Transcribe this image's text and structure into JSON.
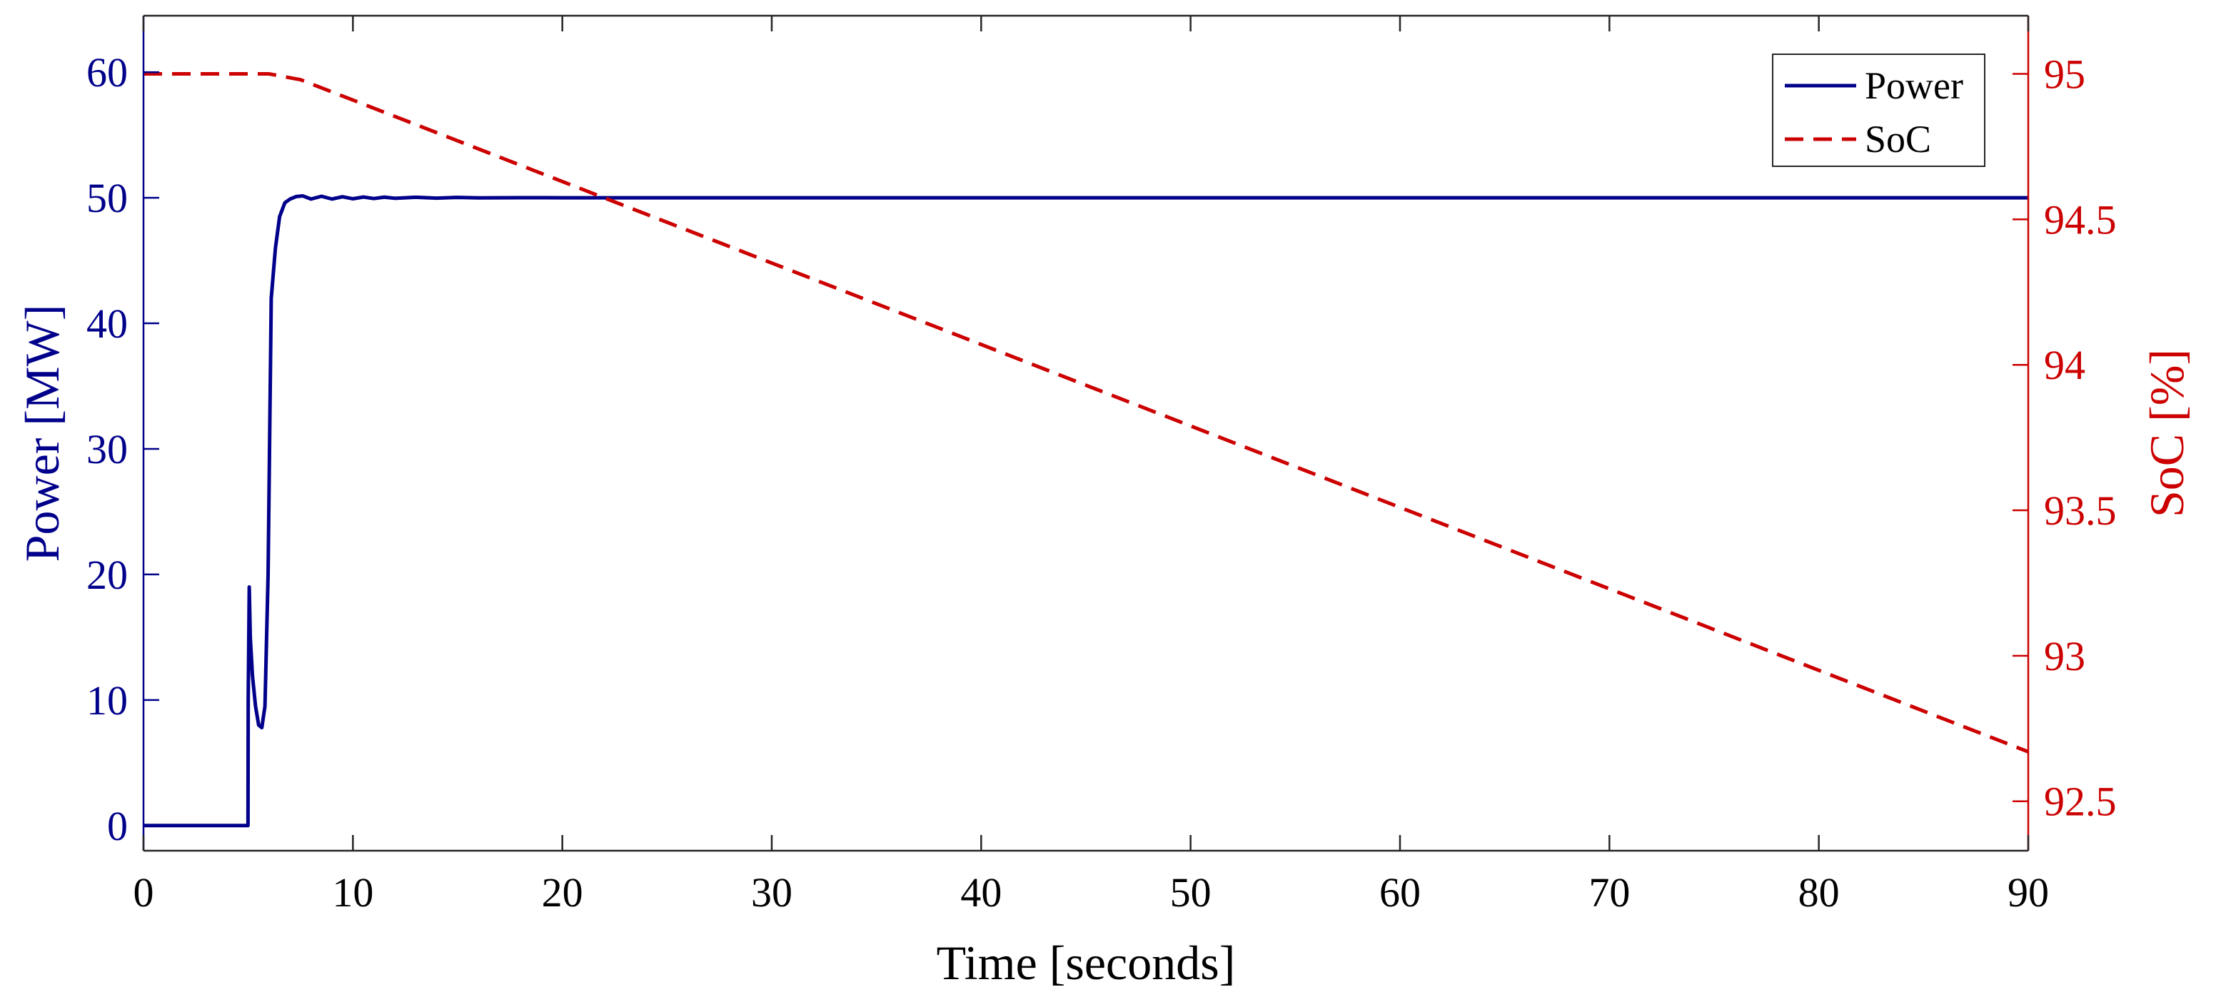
{
  "colors": {
    "power": "#00008b",
    "soc": "#cc0000",
    "axis": "#262626",
    "frame": "#262626"
  },
  "chart_data": {
    "type": "line",
    "title": "",
    "xlabel": "Time [seconds]",
    "ylabel_left": "Power [MW]",
    "ylabel_right": "SoC [%]",
    "xlim": [
      0,
      90
    ],
    "ylim_left": [
      -2,
      64.5
    ],
    "ylim_right": [
      92.33,
      95.2
    ],
    "x_ticks": [
      0,
      10,
      20,
      30,
      40,
      50,
      60,
      70,
      80,
      90
    ],
    "y_left_ticks": [
      0,
      10,
      20,
      30,
      40,
      50,
      60
    ],
    "y_right_ticks": [
      92.5,
      93,
      93.5,
      94,
      94.5,
      95
    ],
    "y_right_tick_labels": [
      "92.5",
      "93",
      "93.5",
      "94",
      "94.5",
      "95"
    ],
    "grid": false,
    "legend": {
      "placement": "top-right",
      "entries": [
        "Power",
        "SoC"
      ]
    },
    "series": [
      {
        "name": "Power",
        "axis": "left",
        "style": "solid",
        "x": [
          0,
          4.99,
          5.0,
          5.05,
          5.1,
          5.2,
          5.35,
          5.5,
          5.65,
          5.8,
          5.95,
          6.1,
          6.3,
          6.5,
          6.75,
          7.0,
          7.3,
          7.6,
          8.0,
          8.5,
          9.0,
          9.5,
          10.0,
          10.5,
          11.0,
          11.5,
          12.0,
          13.0,
          14.0,
          15.0,
          16.0,
          18.0,
          20.0,
          90.0
        ],
        "y": [
          0,
          0,
          10,
          19,
          15,
          12,
          9.5,
          8.0,
          7.8,
          9.5,
          20,
          42,
          46,
          48.5,
          49.6,
          49.9,
          50.1,
          50.15,
          49.9,
          50.12,
          49.9,
          50.08,
          49.92,
          50.06,
          49.94,
          50.05,
          49.96,
          50.04,
          49.97,
          50.03,
          49.99,
          50.01,
          50.0,
          50.0
        ]
      },
      {
        "name": "SoC",
        "axis": "right",
        "style": "dashed",
        "x": [
          0,
          6.0,
          7.5,
          90
        ],
        "y": [
          95.0,
          95.0,
          94.98,
          92.67
        ]
      }
    ]
  }
}
